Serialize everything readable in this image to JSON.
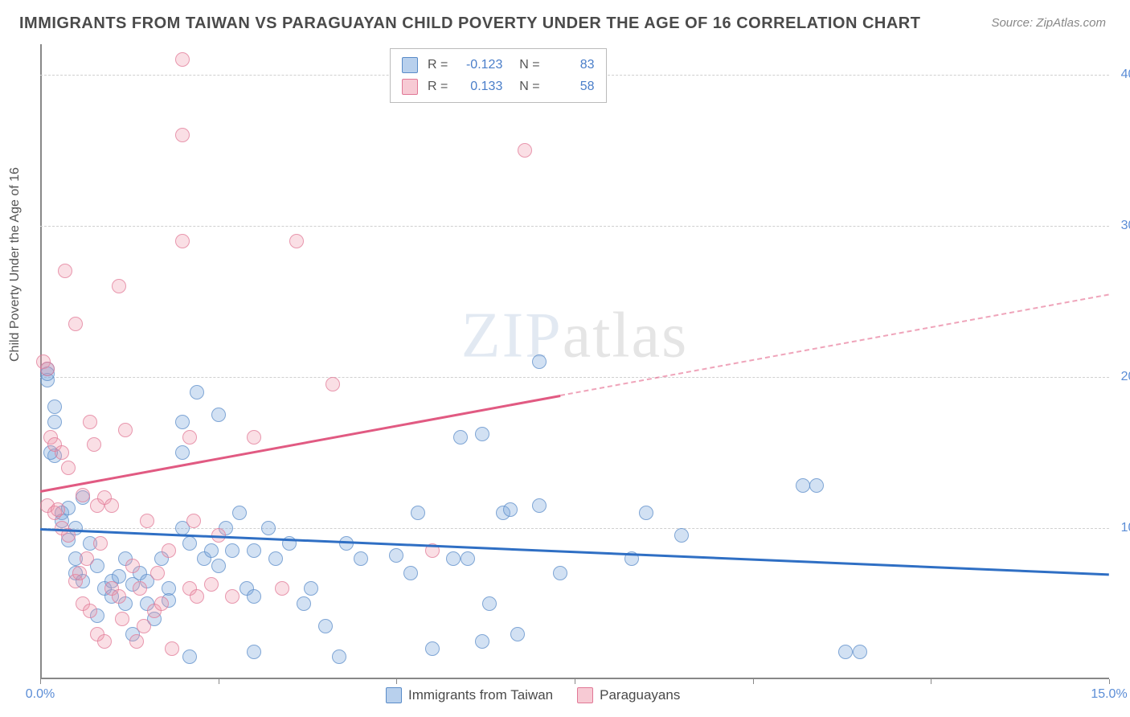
{
  "title": "IMMIGRANTS FROM TAIWAN VS PARAGUAYAN CHILD POVERTY UNDER THE AGE OF 16 CORRELATION CHART",
  "source": "Source: ZipAtlas.com",
  "y_axis_label": "Child Poverty Under the Age of 16",
  "watermark": "ZIPatlas",
  "chart": {
    "type": "scatter",
    "xlim": [
      0,
      15
    ],
    "ylim": [
      0,
      42
    ],
    "x_ticks": [
      0,
      2.5,
      5,
      7.5,
      10,
      12.5,
      15
    ],
    "x_tick_labels": [
      "0.0%",
      "",
      "",
      "",
      "",
      "",
      "15.0%"
    ],
    "y_ticks": [
      10,
      20,
      30,
      40
    ],
    "y_tick_labels": [
      "10.0%",
      "20.0%",
      "30.0%",
      "40.0%"
    ],
    "grid_color": "#d0d0d0",
    "background_color": "#ffffff",
    "marker_radius": 9,
    "series": [
      {
        "name": "Immigrants from Taiwan",
        "color_fill": "rgba(125,170,222,0.35)",
        "color_stroke": "rgba(90,140,200,0.7)",
        "r": -0.123,
        "n": 83,
        "trend_color": "#2f6fc4",
        "trend": {
          "x1": 0,
          "y1": 10.0,
          "x2": 15,
          "y2": 7.0
        },
        "points": [
          [
            0.1,
            20.5
          ],
          [
            0.1,
            19.8
          ],
          [
            0.1,
            20.2
          ],
          [
            0.2,
            18.0
          ],
          [
            0.2,
            17.0
          ],
          [
            0.2,
            14.8
          ],
          [
            0.3,
            11.0
          ],
          [
            0.3,
            10.5
          ],
          [
            0.4,
            9.2
          ],
          [
            0.4,
            11.3
          ],
          [
            0.5,
            10.0
          ],
          [
            0.5,
            8.0
          ],
          [
            0.5,
            7.0
          ],
          [
            0.6,
            6.5
          ],
          [
            0.6,
            12.0
          ],
          [
            0.7,
            9.0
          ],
          [
            0.8,
            7.5
          ],
          [
            0.8,
            4.2
          ],
          [
            0.9,
            6.0
          ],
          [
            1.0,
            6.5
          ],
          [
            1.0,
            5.5
          ],
          [
            1.1,
            6.8
          ],
          [
            1.2,
            5.0
          ],
          [
            1.2,
            8.0
          ],
          [
            1.3,
            6.3
          ],
          [
            1.3,
            3.0
          ],
          [
            1.4,
            7.0
          ],
          [
            1.5,
            6.5
          ],
          [
            1.5,
            5.0
          ],
          [
            1.6,
            4.0
          ],
          [
            1.7,
            8.0
          ],
          [
            1.8,
            6.0
          ],
          [
            1.8,
            5.2
          ],
          [
            2.0,
            17.0
          ],
          [
            2.0,
            15.0
          ],
          [
            2.0,
            10.0
          ],
          [
            2.1,
            9.0
          ],
          [
            2.1,
            1.5
          ],
          [
            2.2,
            19.0
          ],
          [
            2.3,
            8.0
          ],
          [
            2.4,
            8.5
          ],
          [
            2.5,
            7.5
          ],
          [
            2.5,
            17.5
          ],
          [
            2.6,
            10.0
          ],
          [
            2.7,
            8.5
          ],
          [
            2.8,
            11.0
          ],
          [
            2.9,
            6.0
          ],
          [
            3.0,
            1.8
          ],
          [
            3.0,
            8.5
          ],
          [
            3.2,
            10.0
          ],
          [
            3.3,
            8.0
          ],
          [
            3.5,
            9.0
          ],
          [
            3.7,
            5.0
          ],
          [
            3.8,
            6.0
          ],
          [
            4.0,
            3.5
          ],
          [
            4.2,
            1.5
          ],
          [
            4.3,
            9.0
          ],
          [
            4.5,
            8.0
          ],
          [
            5.0,
            8.2
          ],
          [
            5.2,
            7.0
          ],
          [
            5.3,
            11.0
          ],
          [
            5.5,
            2.0
          ],
          [
            5.8,
            8.0
          ],
          [
            5.9,
            16.0
          ],
          [
            6.0,
            8.0
          ],
          [
            6.2,
            2.5
          ],
          [
            6.2,
            16.2
          ],
          [
            6.3,
            5.0
          ],
          [
            6.5,
            11.0
          ],
          [
            6.6,
            11.2
          ],
          [
            6.7,
            3.0
          ],
          [
            7.0,
            21.0
          ],
          [
            7.0,
            11.5
          ],
          [
            7.3,
            7.0
          ],
          [
            8.3,
            8.0
          ],
          [
            8.5,
            11.0
          ],
          [
            9.0,
            9.5
          ],
          [
            10.7,
            12.8
          ],
          [
            10.9,
            12.8
          ],
          [
            11.3,
            1.8
          ],
          [
            11.5,
            1.8
          ],
          [
            3.0,
            5.5
          ],
          [
            0.15,
            15.0
          ]
        ]
      },
      {
        "name": "Paraguayans",
        "color_fill": "rgba(240,150,170,0.3)",
        "color_stroke": "rgba(225,120,150,0.7)",
        "r": 0.133,
        "n": 58,
        "trend_color": "#e15a82",
        "trend": {
          "x1": 0,
          "y1": 12.5,
          "x2": 15,
          "y2": 25.5
        },
        "trend_dash_from_x": 7.3,
        "points": [
          [
            0.05,
            21.0
          ],
          [
            0.1,
            20.5
          ],
          [
            0.1,
            11.5
          ],
          [
            0.15,
            16.0
          ],
          [
            0.2,
            15.5
          ],
          [
            0.2,
            11.0
          ],
          [
            0.25,
            11.2
          ],
          [
            0.3,
            10.0
          ],
          [
            0.3,
            15.0
          ],
          [
            0.35,
            27.0
          ],
          [
            0.4,
            14.0
          ],
          [
            0.4,
            9.5
          ],
          [
            0.5,
            23.5
          ],
          [
            0.5,
            6.5
          ],
          [
            0.55,
            7.0
          ],
          [
            0.6,
            12.2
          ],
          [
            0.6,
            5.0
          ],
          [
            0.65,
            8.0
          ],
          [
            0.7,
            17.0
          ],
          [
            0.7,
            4.5
          ],
          [
            0.75,
            15.5
          ],
          [
            0.8,
            11.5
          ],
          [
            0.8,
            3.0
          ],
          [
            0.85,
            9.0
          ],
          [
            0.9,
            12.0
          ],
          [
            0.9,
            2.5
          ],
          [
            1.0,
            11.5
          ],
          [
            1.0,
            6.0
          ],
          [
            1.1,
            26.0
          ],
          [
            1.1,
            5.5
          ],
          [
            1.15,
            4.0
          ],
          [
            1.2,
            16.5
          ],
          [
            1.3,
            7.5
          ],
          [
            1.35,
            2.5
          ],
          [
            1.4,
            6.0
          ],
          [
            1.5,
            10.5
          ],
          [
            1.6,
            4.5
          ],
          [
            1.65,
            7.0
          ],
          [
            1.7,
            5.0
          ],
          [
            1.8,
            8.5
          ],
          [
            1.85,
            2.0
          ],
          [
            2.0,
            41.0
          ],
          [
            2.0,
            36.0
          ],
          [
            2.0,
            29.0
          ],
          [
            2.1,
            16.0
          ],
          [
            2.1,
            6.0
          ],
          [
            2.15,
            10.5
          ],
          [
            2.2,
            5.5
          ],
          [
            2.4,
            6.3
          ],
          [
            2.5,
            9.5
          ],
          [
            2.7,
            5.5
          ],
          [
            3.0,
            16.0
          ],
          [
            3.4,
            6.0
          ],
          [
            3.6,
            29.0
          ],
          [
            4.1,
            19.5
          ],
          [
            5.5,
            8.5
          ],
          [
            6.8,
            35.0
          ],
          [
            1.45,
            3.5
          ]
        ]
      }
    ]
  },
  "stats_box": {
    "rows": [
      {
        "swatch": "blue",
        "r": "-0.123",
        "n": "83"
      },
      {
        "swatch": "pink",
        "r": "0.133",
        "n": "58"
      }
    ]
  },
  "bottom_legend": [
    {
      "swatch": "blue",
      "label": "Immigrants from Taiwan"
    },
    {
      "swatch": "pink",
      "label": "Paraguayans"
    }
  ]
}
